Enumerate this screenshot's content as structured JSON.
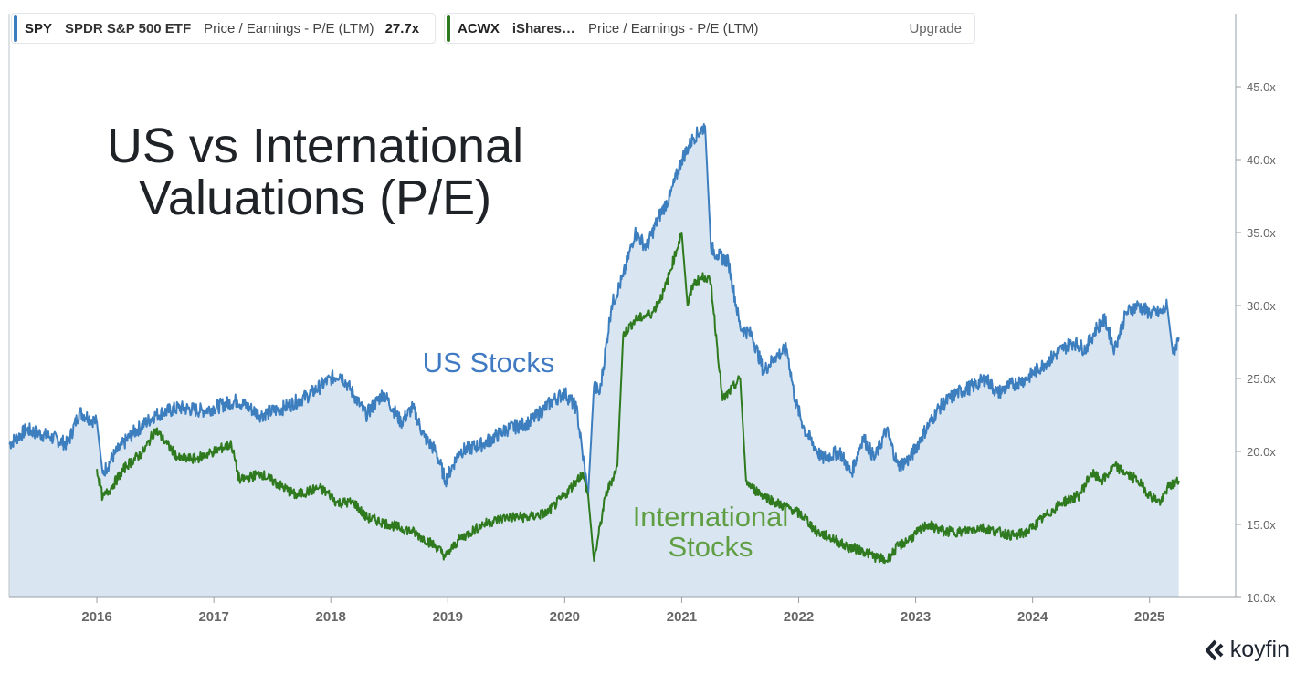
{
  "legend": [
    {
      "symbol": "SPY",
      "name": "SPDR S&P 500 ETF",
      "metric": "Price / Earnings - P/E (LTM)",
      "value": "27.7x",
      "color": "#3d7ebf"
    },
    {
      "symbol": "ACWX",
      "name": "iShares…",
      "metric": "Price / Earnings - P/E (LTM)",
      "upgrade": "Upgrade",
      "color": "#2f7a1f"
    }
  ],
  "brand": "koyfin",
  "chart_data": {
    "type": "line",
    "title_lines": [
      "US vs International",
      "Valuations (P/E)"
    ],
    "annotations": [
      {
        "text": "US Stocks",
        "color": "#3f7ac3"
      },
      {
        "text": "International",
        "color": "#5f9e43"
      },
      {
        "text": "Stocks",
        "color": "#5f9e43"
      }
    ],
    "xlim": [
      2015.25,
      2025.58
    ],
    "ylim": [
      10,
      50
    ],
    "x_ticks": [
      2016,
      2017,
      2018,
      2019,
      2020,
      2021,
      2022,
      2023,
      2024,
      2025
    ],
    "x_tick_labels": [
      "2016",
      "2017",
      "2018",
      "2019",
      "2020",
      "2021",
      "2022",
      "2023",
      "2024",
      "2025"
    ],
    "y_ticks": [
      10,
      15,
      20,
      25,
      30,
      35,
      40,
      45
    ],
    "y_tick_labels": [
      "10.0x",
      "15.0x",
      "20.0x",
      "25.0x",
      "30.0x",
      "35.0x",
      "40.0x",
      "45.0x"
    ],
    "series": [
      {
        "name": "SPY",
        "color": "#3d7ebf",
        "fill": "#d9e6f2",
        "x": [
          2015.25,
          2015.4,
          2015.6,
          2015.75,
          2015.85,
          2016.0,
          2016.05,
          2016.15,
          2016.3,
          2016.5,
          2016.7,
          2016.9,
          2017.0,
          2017.2,
          2017.4,
          2017.6,
          2017.8,
          2018.0,
          2018.08,
          2018.15,
          2018.3,
          2018.45,
          2018.6,
          2018.7,
          2018.8,
          2018.9,
          2018.98,
          2019.1,
          2019.3,
          2019.5,
          2019.7,
          2019.9,
          2020.0,
          2020.1,
          2020.15,
          2020.2,
          2020.25,
          2020.3,
          2020.4,
          2020.5,
          2020.6,
          2020.7,
          2020.8,
          2020.9,
          2021.0,
          2021.1,
          2021.2,
          2021.25,
          2021.3,
          2021.4,
          2021.5,
          2021.6,
          2021.7,
          2021.8,
          2021.9,
          2021.97,
          2022.05,
          2022.2,
          2022.35,
          2022.45,
          2022.55,
          2022.65,
          2022.75,
          2022.85,
          2022.95,
          2023.05,
          2023.2,
          2023.35,
          2023.5,
          2023.6,
          2023.7,
          2023.8,
          2023.95,
          2024.1,
          2024.25,
          2024.35,
          2024.45,
          2024.55,
          2024.62,
          2024.7,
          2024.8,
          2024.9,
          2025.0,
          2025.1,
          2025.15,
          2025.2,
          2025.25
        ],
        "y": [
          20.5,
          21.5,
          21.0,
          20.5,
          22.7,
          22.0,
          18.5,
          19.8,
          21.2,
          22.5,
          23.0,
          22.8,
          23.0,
          23.5,
          22.5,
          23.0,
          23.8,
          25.0,
          25.3,
          24.5,
          22.5,
          24.0,
          22.0,
          23.0,
          21.0,
          20.0,
          18.0,
          20.0,
          20.5,
          21.5,
          22.0,
          23.5,
          24.0,
          23.0,
          20.0,
          17.0,
          24.5,
          24.0,
          30.0,
          32.0,
          35.0,
          34.0,
          36.0,
          37.5,
          40.0,
          41.5,
          42.3,
          34.0,
          33.5,
          33.0,
          28.5,
          28.0,
          25.5,
          26.5,
          27.0,
          23.5,
          21.5,
          19.5,
          20.0,
          18.5,
          21.0,
          19.5,
          21.5,
          19.0,
          19.5,
          21.0,
          23.0,
          24.0,
          24.5,
          25.0,
          24.0,
          24.5,
          25.0,
          26.0,
          27.0,
          27.5,
          27.0,
          28.5,
          29.0,
          27.0,
          29.5,
          30.0,
          29.5,
          29.5,
          30.0,
          26.7,
          27.8
        ]
      },
      {
        "name": "ACWX",
        "color": "#2f7a1f",
        "x": [
          2016.0,
          2016.05,
          2016.12,
          2016.25,
          2016.4,
          2016.5,
          2016.6,
          2016.7,
          2016.85,
          2017.0,
          2017.15,
          2017.22,
          2017.4,
          2017.5,
          2017.7,
          2017.9,
          2018.0,
          2018.05,
          2018.2,
          2018.3,
          2018.5,
          2018.7,
          2018.9,
          2018.98,
          2019.1,
          2019.3,
          2019.5,
          2019.7,
          2019.85,
          2020.0,
          2020.1,
          2020.15,
          2020.2,
          2020.25,
          2020.35,
          2020.45,
          2020.5,
          2020.6,
          2020.75,
          2020.85,
          2021.0,
          2021.05,
          2021.1,
          2021.2,
          2021.25,
          2021.35,
          2021.5,
          2021.55,
          2021.6,
          2021.7,
          2021.8,
          2021.95,
          2022.05,
          2022.15,
          2022.3,
          2022.4,
          2022.55,
          2022.65,
          2022.75,
          2022.85,
          2022.95,
          2023.1,
          2023.25,
          2023.4,
          2023.55,
          2023.7,
          2023.85,
          2023.95,
          2024.1,
          2024.25,
          2024.4,
          2024.5,
          2024.6,
          2024.7,
          2024.8,
          2024.9,
          2025.0,
          2025.1,
          2025.15,
          2025.25
        ],
        "y": [
          18.8,
          16.8,
          17.5,
          19.0,
          20.0,
          21.5,
          20.5,
          19.5,
          19.5,
          20.0,
          20.5,
          18.0,
          18.5,
          18.0,
          17.0,
          17.5,
          17.0,
          16.5,
          16.5,
          15.5,
          15.0,
          14.5,
          13.5,
          12.8,
          14.0,
          15.0,
          15.5,
          15.5,
          15.8,
          17.0,
          18.0,
          18.5,
          17.0,
          12.5,
          17.0,
          19.0,
          28.0,
          29.0,
          29.5,
          31.0,
          35.0,
          30.0,
          31.5,
          32.0,
          31.5,
          23.5,
          25.0,
          18.0,
          17.5,
          17.0,
          16.5,
          16.0,
          15.5,
          14.5,
          14.0,
          13.5,
          13.2,
          12.8,
          12.5,
          13.5,
          14.0,
          15.0,
          14.5,
          14.5,
          14.8,
          14.5,
          14.2,
          14.5,
          15.5,
          16.5,
          17.0,
          18.5,
          18.0,
          19.0,
          18.5,
          18.0,
          17.0,
          16.5,
          17.5,
          18.0
        ]
      }
    ]
  }
}
